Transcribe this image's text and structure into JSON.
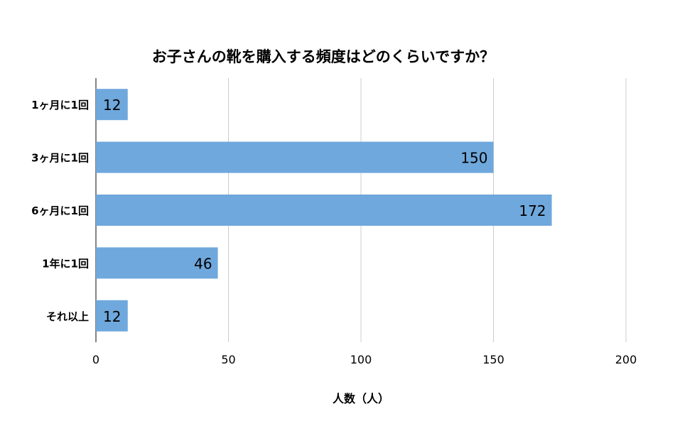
{
  "chart_data": {
    "type": "bar",
    "orientation": "horizontal",
    "title": "お子さんの靴を購入する頻度はどのくらいですか？",
    "xlabel": "人数（人）",
    "ylabel": "",
    "categories": [
      "1ヶ月に1回",
      "3ヶ月に1回",
      "6ヶ月に1回",
      "1年に1回",
      "それ以上"
    ],
    "values": [
      12,
      150,
      172,
      46,
      12
    ],
    "value_labels": [
      "12",
      "150",
      "172",
      "46",
      "12"
    ],
    "xlim": [
      0,
      200
    ],
    "xticks": [
      "0",
      "50",
      "100",
      "150",
      "200"
    ],
    "xtick_values": [
      0,
      50,
      100,
      150,
      200
    ],
    "grid": true,
    "legend": "none",
    "bar_color": "#6fa8dc",
    "grid_color": "#cccccc",
    "axis_color": "#333333"
  }
}
